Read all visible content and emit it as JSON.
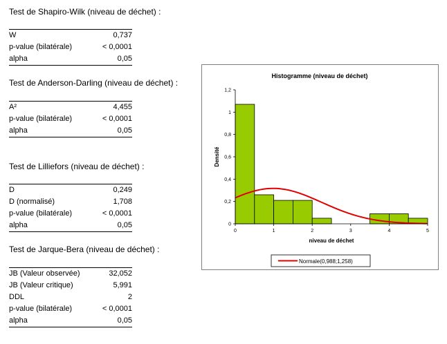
{
  "tests": [
    {
      "title": "Test de Shapiro-Wilk (niveau de déchet) :",
      "rows": [
        {
          "label": "W",
          "value": "0,737"
        },
        {
          "label": "p-value (bilatérale)",
          "value": "< 0,0001"
        },
        {
          "label": "alpha",
          "value": "0,05"
        }
      ]
    },
    {
      "title": "Test de Anderson-Darling (niveau de déchet) :",
      "rows": [
        {
          "label": "A²",
          "value": "4,455"
        },
        {
          "label": "p-value (bilatérale)",
          "value": "< 0,0001"
        },
        {
          "label": "alpha",
          "value": "0,05"
        }
      ]
    },
    {
      "title": "Test de Lilliefors (niveau de déchet) :",
      "rows": [
        {
          "label": "D",
          "value": "0,249"
        },
        {
          "label": "D (normalisé)",
          "value": "1,708"
        },
        {
          "label": "p-value (bilatérale)",
          "value": "< 0,0001"
        },
        {
          "label": "alpha",
          "value": "0,05"
        }
      ]
    },
    {
      "title": "Test de Jarque-Bera (niveau de déchet) :",
      "rows": [
        {
          "label": "JB (Valeur observée)",
          "value": "32,052"
        },
        {
          "label": "JB (Valeur critique)",
          "value": "5,991"
        },
        {
          "label": "DDL",
          "value": "2"
        },
        {
          "label": "p-value (bilatérale)",
          "value": "< 0,0001"
        },
        {
          "label": "alpha",
          "value": "0,05"
        }
      ]
    }
  ],
  "chart_data": {
    "type": "bar",
    "title": "Histogramme  (niveau de déchet)",
    "xlabel": "niveau de déchet",
    "ylabel": "Densité",
    "xlim": [
      0,
      5
    ],
    "ylim": [
      0,
      1.2
    ],
    "x_ticks": [
      "0",
      "1",
      "2",
      "3",
      "4",
      "5"
    ],
    "y_ticks": [
      "0",
      "0,2",
      "0,4",
      "0,6",
      "0,8",
      "1",
      "1,2"
    ],
    "bins": [
      {
        "x0": 0,
        "x1": 0.5,
        "value": 1.07
      },
      {
        "x0": 0.5,
        "x1": 1.0,
        "value": 0.26
      },
      {
        "x0": 1.0,
        "x1": 1.5,
        "value": 0.21
      },
      {
        "x0": 1.5,
        "x1": 2.0,
        "value": 0.21
      },
      {
        "x0": 2.0,
        "x1": 2.5,
        "value": 0.05
      },
      {
        "x0": 2.5,
        "x1": 3.0,
        "value": 0
      },
      {
        "x0": 3.0,
        "x1": 3.5,
        "value": 0
      },
      {
        "x0": 3.5,
        "x1": 4.0,
        "value": 0.09
      },
      {
        "x0": 4.0,
        "x1": 4.5,
        "value": 0.09
      },
      {
        "x0": 4.5,
        "x1": 5.0,
        "value": 0.05
      }
    ],
    "bar_color": "#99cc00",
    "curve": {
      "name": "Normale(0,988;1,258)",
      "mean": 0.988,
      "sd": 1.258,
      "color": "#e00000"
    },
    "legend": {
      "label": "Normale(0,988;1,258)",
      "position": "bottom"
    },
    "grid": false
  }
}
